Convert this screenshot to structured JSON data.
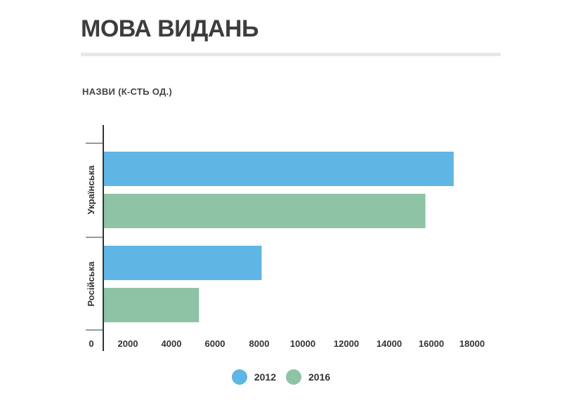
{
  "header": {
    "title": "МОВА ВИДАНЬ",
    "subtitle": "НАЗВИ (К-СТЬ ОД.)"
  },
  "chart_data": {
    "type": "bar",
    "orientation": "horizontal",
    "categories": [
      "Українська",
      "Російська"
    ],
    "series": [
      {
        "name": "2012",
        "color": "#5fb6e5",
        "values": [
          17300,
          7800
        ]
      },
      {
        "name": "2016",
        "color": "#8ec3a6",
        "values": [
          15900,
          4700
        ]
      }
    ],
    "xlim": [
      0,
      18000
    ],
    "xticks": [
      "0",
      "2000",
      "4000",
      "6000",
      "8000",
      "10000",
      "12000",
      "14000",
      "16000",
      "18000"
    ],
    "grid": false,
    "legend_position": "bottom-center"
  },
  "legend": [
    {
      "label": "2012",
      "color": "#5fb6e5"
    },
    {
      "label": "2016",
      "color": "#8ec3a6"
    }
  ]
}
